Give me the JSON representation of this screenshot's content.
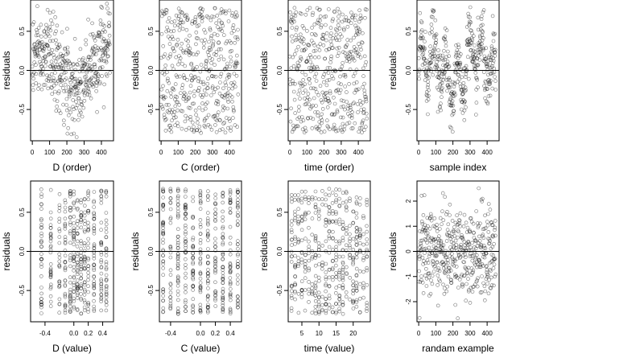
{
  "chart_data": [
    {
      "id": "p1",
      "type": "scatter",
      "xlabel": "D (order)",
      "ylabel": "residuals",
      "xlim": [
        -10,
        470
      ],
      "ylim": [
        -0.9,
        0.9
      ],
      "xticks": [
        0,
        100,
        200,
        300,
        400
      ],
      "yticks": [
        -0.5,
        0.0,
        0.5
      ],
      "xtick_labels": [
        "0",
        "100",
        "200",
        "300",
        "400"
      ],
      "ytick_labels": [
        "-0.5",
        "0.0",
        "0.5"
      ],
      "zero_line": 0,
      "x_count": 450,
      "x_range": [
        0,
        450
      ],
      "pattern": "order-D"
    },
    {
      "id": "p2",
      "type": "scatter",
      "xlabel": "C (order)",
      "ylabel": "residuals",
      "xlim": [
        -10,
        470
      ],
      "ylim": [
        -0.9,
        0.9
      ],
      "xticks": [
        0,
        100,
        200,
        300,
        400
      ],
      "yticks": [
        -0.5,
        0.0,
        0.5
      ],
      "xtick_labels": [
        "0",
        "100",
        "200",
        "300",
        "400"
      ],
      "ytick_labels": [
        "-0.5",
        "0.0",
        "0.5"
      ],
      "zero_line": 0,
      "x_count": 450,
      "x_range": [
        0,
        450
      ],
      "pattern": "uniform"
    },
    {
      "id": "p3",
      "type": "scatter",
      "xlabel": "time (order)",
      "ylabel": "residuals",
      "xlim": [
        -10,
        470
      ],
      "ylim": [
        -0.9,
        0.9
      ],
      "xticks": [
        0,
        100,
        200,
        300,
        400
      ],
      "yticks": [
        -0.5,
        0.0,
        0.5
      ],
      "xtick_labels": [
        "0",
        "100",
        "200",
        "300",
        "400"
      ],
      "ytick_labels": [
        "-0.5",
        "0.0",
        "0.5"
      ],
      "zero_line": 0,
      "x_count": 450,
      "x_range": [
        0,
        450
      ],
      "pattern": "uniform"
    },
    {
      "id": "p4",
      "type": "scatter",
      "xlabel": "sample index",
      "ylabel": "residuals",
      "xlim": [
        -10,
        470
      ],
      "ylim": [
        -0.9,
        0.9
      ],
      "xticks": [
        0,
        100,
        200,
        300,
        400
      ],
      "yticks": [
        -0.5,
        0.0,
        0.5
      ],
      "xtick_labels": [
        "0",
        "100",
        "200",
        "300",
        "400"
      ],
      "ytick_labels": [
        "-0.5",
        "0.0",
        "0.5"
      ],
      "zero_line": 0,
      "x_count": 450,
      "x_range": [
        0,
        450
      ],
      "pattern": "wave"
    },
    {
      "id": "p5",
      "type": "scatter",
      "xlabel": "D (value)",
      "ylabel": "residuals",
      "xlim": [
        -0.6,
        0.55
      ],
      "ylim": [
        -0.9,
        0.9
      ],
      "xticks": [
        -0.4,
        0.0,
        0.2,
        0.4
      ],
      "yticks": [
        -0.5,
        0.0,
        0.5
      ],
      "xtick_labels": [
        "-0.4",
        "0.0",
        "0.2",
        "0.4"
      ],
      "ytick_labels": [
        "-0.5",
        "0.0",
        "0.5"
      ],
      "zero_line": 0,
      "x_count": 450,
      "x_range": [
        -0.5,
        0.5
      ],
      "pattern": "columns",
      "columns": [
        -0.45,
        -0.32,
        -0.2,
        -0.12,
        -0.05,
        0.0,
        0.05,
        0.1,
        0.15,
        0.2,
        0.28,
        0.38,
        0.45
      ]
    },
    {
      "id": "p6",
      "type": "scatter",
      "xlabel": "C (value)",
      "ylabel": "residuals",
      "xlim": [
        -0.55,
        0.55
      ],
      "ylim": [
        -0.9,
        0.9
      ],
      "xticks": [
        -0.4,
        0.0,
        0.2,
        0.4
      ],
      "yticks": [
        -0.5,
        0.0,
        0.5
      ],
      "xtick_labels": [
        "-0.4",
        "0.0",
        "0.2",
        "0.4"
      ],
      "ytick_labels": [
        "-0.5",
        "0.0",
        "0.5"
      ],
      "zero_line": 0,
      "x_count": 450,
      "x_range": [
        -0.5,
        0.5
      ],
      "pattern": "columns",
      "columns": [
        -0.5,
        -0.4,
        -0.3,
        -0.2,
        -0.1,
        0.0,
        0.1,
        0.2,
        0.3,
        0.4,
        0.5
      ]
    },
    {
      "id": "p7",
      "type": "scatter",
      "xlabel": "time (value)",
      "ylabel": "residuals",
      "xlim": [
        1,
        25
      ],
      "ylim": [
        -0.9,
        0.9
      ],
      "xticks": [
        5,
        10,
        15,
        20
      ],
      "yticks": [
        -0.5,
        0.0,
        0.5
      ],
      "xtick_labels": [
        "5",
        "10",
        "15",
        "20"
      ],
      "ytick_labels": [
        "-0.5",
        "0.0",
        "0.5"
      ],
      "zero_line": 0,
      "x_count": 450,
      "x_range": [
        2,
        24
      ],
      "pattern": "columns",
      "columns": [
        2,
        3,
        4,
        5,
        6,
        7,
        8,
        9,
        10,
        11,
        12,
        13,
        14,
        15,
        16,
        17,
        18,
        19,
        20,
        21,
        22,
        23,
        24
      ]
    },
    {
      "id": "p8",
      "type": "scatter",
      "xlabel": "randam example",
      "ylabel": "residuals",
      "xlim": [
        -10,
        470
      ],
      "ylim": [
        -2.8,
        2.8
      ],
      "xticks": [
        0,
        100,
        200,
        300,
        400
      ],
      "yticks": [
        -2,
        -1,
        0,
        1,
        2
      ],
      "xtick_labels": [
        "0",
        "100",
        "200",
        "300",
        "400"
      ],
      "ytick_labels": [
        "-2",
        "-1",
        "0",
        "1",
        "2"
      ],
      "zero_line": 0,
      "x_count": 450,
      "x_range": [
        0,
        450
      ],
      "pattern": "normal"
    }
  ]
}
